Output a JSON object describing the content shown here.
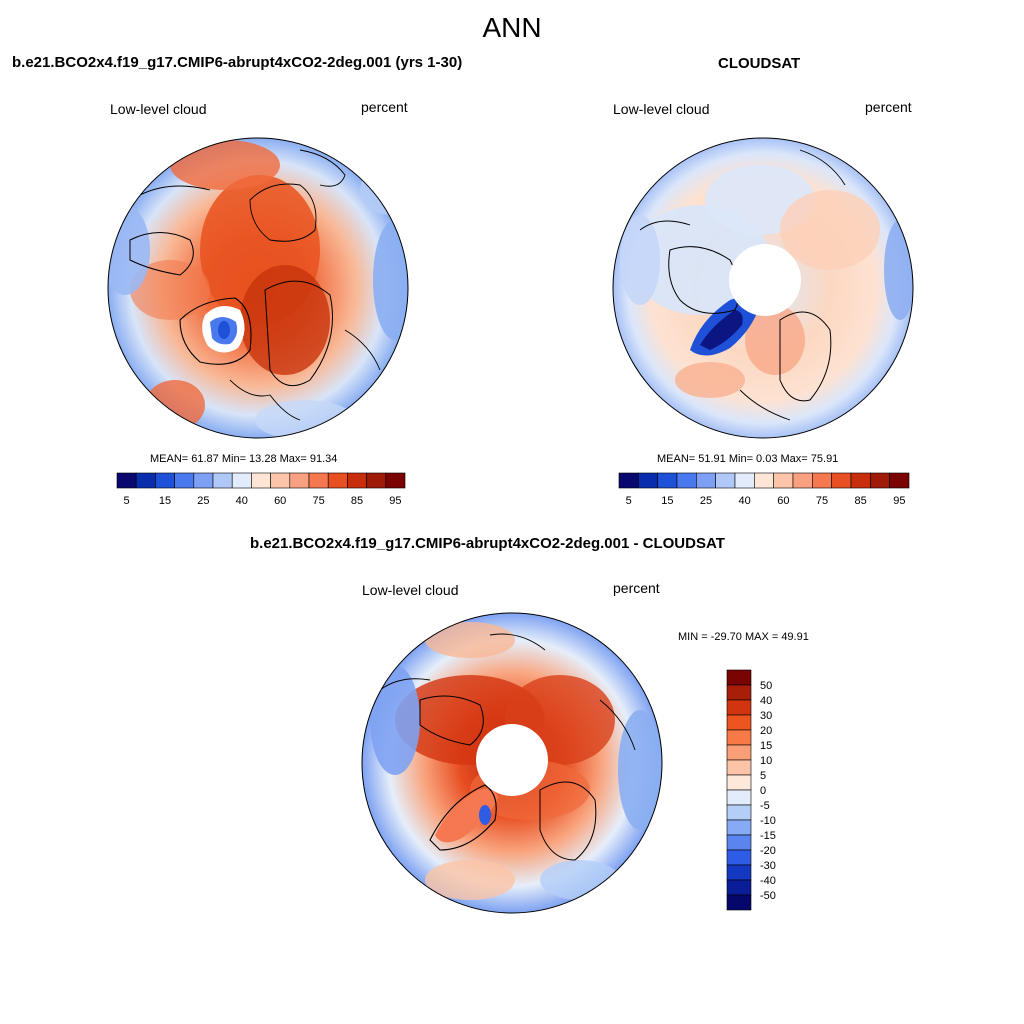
{
  "figure": {
    "title": "ANN"
  },
  "panels": [
    {
      "title": "b.e21.BCO2x4.f19_g17.CMIP6-abrupt4xCO2-2deg.001 (yrs 1-30)",
      "left_string": "Low-level cloud",
      "right_string": "percent",
      "stats": "MEAN=  61.87  Min=  13.28  Max=  91.34",
      "pole_hole": false
    },
    {
      "title": "CLOUDSAT",
      "left_string": "Low-level cloud",
      "right_string": "percent",
      "stats": "MEAN=  51.91  Min=   0.03  Max=  75.91",
      "pole_hole": true
    },
    {
      "title": "b.e21.BCO2x4.f19_g17.CMIP6-abrupt4xCO2-2deg.001 - CLOUDSAT",
      "left_string": "Low-level cloud",
      "right_string": "percent",
      "stats": "MIN = -29.70 MAX =  49.91",
      "pole_hole": true
    }
  ],
  "colorbar_abs": {
    "labels": [
      "5",
      "15",
      "25",
      "40",
      "60",
      "75",
      "85",
      "95"
    ],
    "colors": [
      "#08086e",
      "#0a2dae",
      "#1e50d8",
      "#4a78ee",
      "#7ea0f4",
      "#b0c8f8",
      "#e2ecfa",
      "#fde6d6",
      "#fcc4a8",
      "#f9a080",
      "#f57850",
      "#e84f22",
      "#c82e0c",
      "#a01a08",
      "#7a0404"
    ]
  },
  "colorbar_diff": {
    "labels": [
      "50",
      "40",
      "30",
      "20",
      "15",
      "10",
      "5",
      "0",
      "-5",
      "-10",
      "-15",
      "-20",
      "-30",
      "-40",
      "-50"
    ],
    "colors": [
      "#7a0404",
      "#a81e08",
      "#d23410",
      "#ec5420",
      "#f77a46",
      "#f99e76",
      "#fbc4a6",
      "#fde8da",
      "#e2ecfa",
      "#b4cef8",
      "#86aaf4",
      "#5a84ee",
      "#2e5ce4",
      "#1438c2",
      "#0a1c98",
      "#05086a"
    ]
  },
  "chart_data": [
    {
      "type": "heatmap",
      "title": "b.e21.BCO2x4.f19_g17.CMIP6-abrupt4xCO2-2deg.001 (yrs 1-30)",
      "variable": "Low-level cloud",
      "units": "percent",
      "projection": "north polar stereographic",
      "mean": 61.87,
      "min": 13.28,
      "max": 91.34,
      "levels": [
        5,
        10,
        15,
        20,
        25,
        30,
        40,
        50,
        60,
        65,
        75,
        80,
        85,
        90,
        95
      ]
    },
    {
      "type": "heatmap",
      "title": "CLOUDSAT",
      "variable": "Low-level cloud",
      "units": "percent",
      "projection": "north polar stereographic",
      "mean": 51.91,
      "min": 0.03,
      "max": 75.91,
      "levels": [
        5,
        10,
        15,
        20,
        25,
        30,
        40,
        50,
        60,
        65,
        75,
        80,
        85,
        90,
        95
      ]
    },
    {
      "type": "heatmap",
      "title": "b.e21.BCO2x4.f19_g17.CMIP6-abrupt4xCO2-2deg.001 - CLOUDSAT",
      "variable": "Low-level cloud",
      "units": "percent",
      "projection": "north polar stereographic",
      "min": -29.7,
      "max": 49.91,
      "levels": [
        -50,
        -40,
        -30,
        -20,
        -15,
        -10,
        -5,
        0,
        5,
        10,
        15,
        20,
        30,
        40,
        50
      ]
    }
  ]
}
